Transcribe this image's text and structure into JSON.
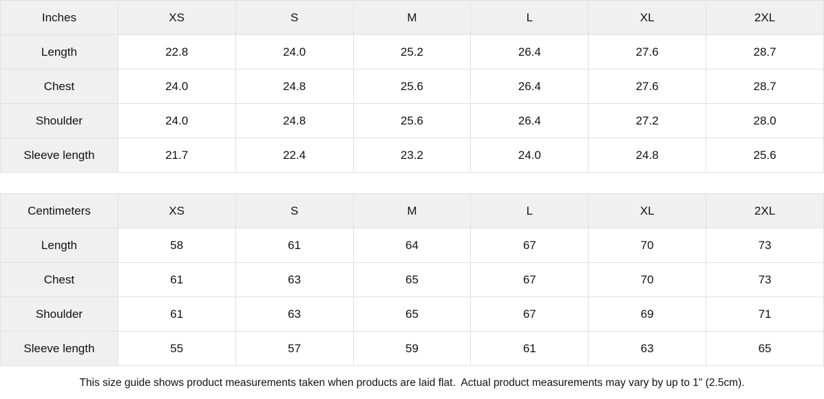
{
  "colors": {
    "header_bg": "#f0f0f0",
    "border": "#e0e0e0",
    "text": "#111111",
    "background": "#ffffff"
  },
  "tables": [
    {
      "unit_label": "Inches",
      "size_headers": [
        "XS",
        "S",
        "M",
        "L",
        "XL",
        "2XL"
      ],
      "rows": [
        {
          "label": "Length",
          "values": [
            "22.8",
            "24.0",
            "25.2",
            "26.4",
            "27.6",
            "28.7"
          ]
        },
        {
          "label": "Chest",
          "values": [
            "24.0",
            "24.8",
            "25.6",
            "26.4",
            "27.6",
            "28.7"
          ]
        },
        {
          "label": "Shoulder",
          "values": [
            "24.0",
            "24.8",
            "25.6",
            "26.4",
            "27.2",
            "28.0"
          ]
        },
        {
          "label": "Sleeve length",
          "values": [
            "21.7",
            "22.4",
            "23.2",
            "24.0",
            "24.8",
            "25.6"
          ]
        }
      ]
    },
    {
      "unit_label": "Centimeters",
      "size_headers": [
        "XS",
        "S",
        "M",
        "L",
        "XL",
        "2XL"
      ],
      "rows": [
        {
          "label": "Length",
          "values": [
            "58",
            "61",
            "64",
            "67",
            "70",
            "73"
          ]
        },
        {
          "label": "Chest",
          "values": [
            "61",
            "63",
            "65",
            "67",
            "70",
            "73"
          ]
        },
        {
          "label": "Shoulder",
          "values": [
            "61",
            "63",
            "65",
            "67",
            "69",
            "71"
          ]
        },
        {
          "label": "Sleeve length",
          "values": [
            "55",
            "57",
            "59",
            "61",
            "63",
            "65"
          ]
        }
      ]
    }
  ],
  "footer": {
    "note": "This size guide shows product measurements taken when products are laid flat.  Actual product measurements may vary by up to 1\" (2.5cm)."
  }
}
